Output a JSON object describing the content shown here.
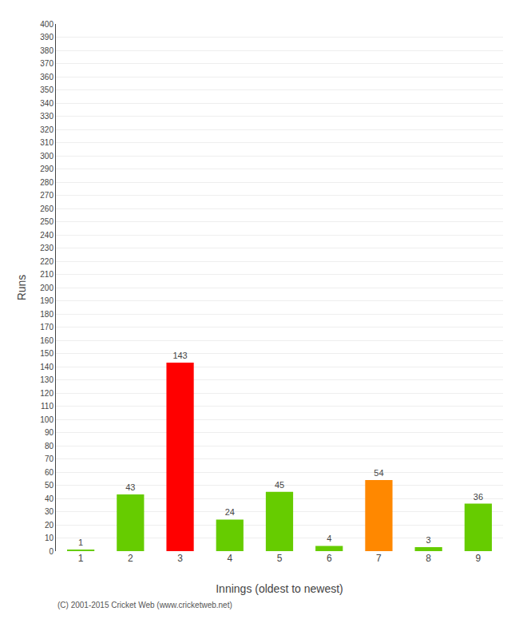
{
  "chart_data": {
    "type": "bar",
    "xlabel": "Innings (oldest to newest)",
    "ylabel": "Runs",
    "categories": [
      "1",
      "2",
      "3",
      "4",
      "5",
      "6",
      "7",
      "8",
      "9"
    ],
    "values": [
      1,
      43,
      143,
      24,
      45,
      4,
      54,
      3,
      36
    ],
    "colors": [
      "#66cc00",
      "#66cc00",
      "#ff0000",
      "#66cc00",
      "#66cc00",
      "#66cc00",
      "#ff8800",
      "#66cc00",
      "#66cc00"
    ],
    "ylim": [
      0,
      400
    ],
    "yticks": [
      0,
      10,
      20,
      30,
      40,
      50,
      60,
      70,
      80,
      90,
      100,
      110,
      120,
      130,
      140,
      150,
      160,
      170,
      180,
      190,
      200,
      210,
      220,
      230,
      240,
      250,
      260,
      270,
      280,
      290,
      300,
      310,
      320,
      330,
      340,
      350,
      360,
      370,
      380,
      390,
      400
    ],
    "grid": true,
    "data_labels": true,
    "annotations": [
      "(C) 2001-2015 Cricket Web (www.cricketweb.net)"
    ]
  }
}
